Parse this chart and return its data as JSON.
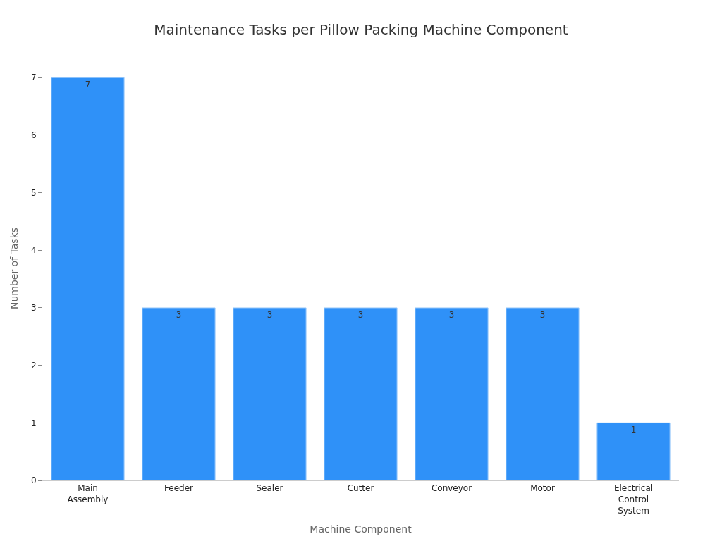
{
  "chart_data": {
    "type": "bar",
    "title": "Maintenance Tasks per Pillow Packing Machine Component",
    "xlabel": "Machine Component",
    "ylabel": "Number of Tasks",
    "categories": [
      "Main Assembly",
      "Feeder",
      "Sealer",
      "Cutter",
      "Conveyor",
      "Motor",
      "Electrical Control System"
    ],
    "values": [
      7,
      3,
      3,
      3,
      3,
      3,
      1
    ],
    "color": "#2f91f8",
    "ylim": [
      0,
      7.37
    ],
    "yticks": [
      0,
      1,
      2,
      3,
      4,
      5,
      6,
      7
    ],
    "data_labels": true
  }
}
